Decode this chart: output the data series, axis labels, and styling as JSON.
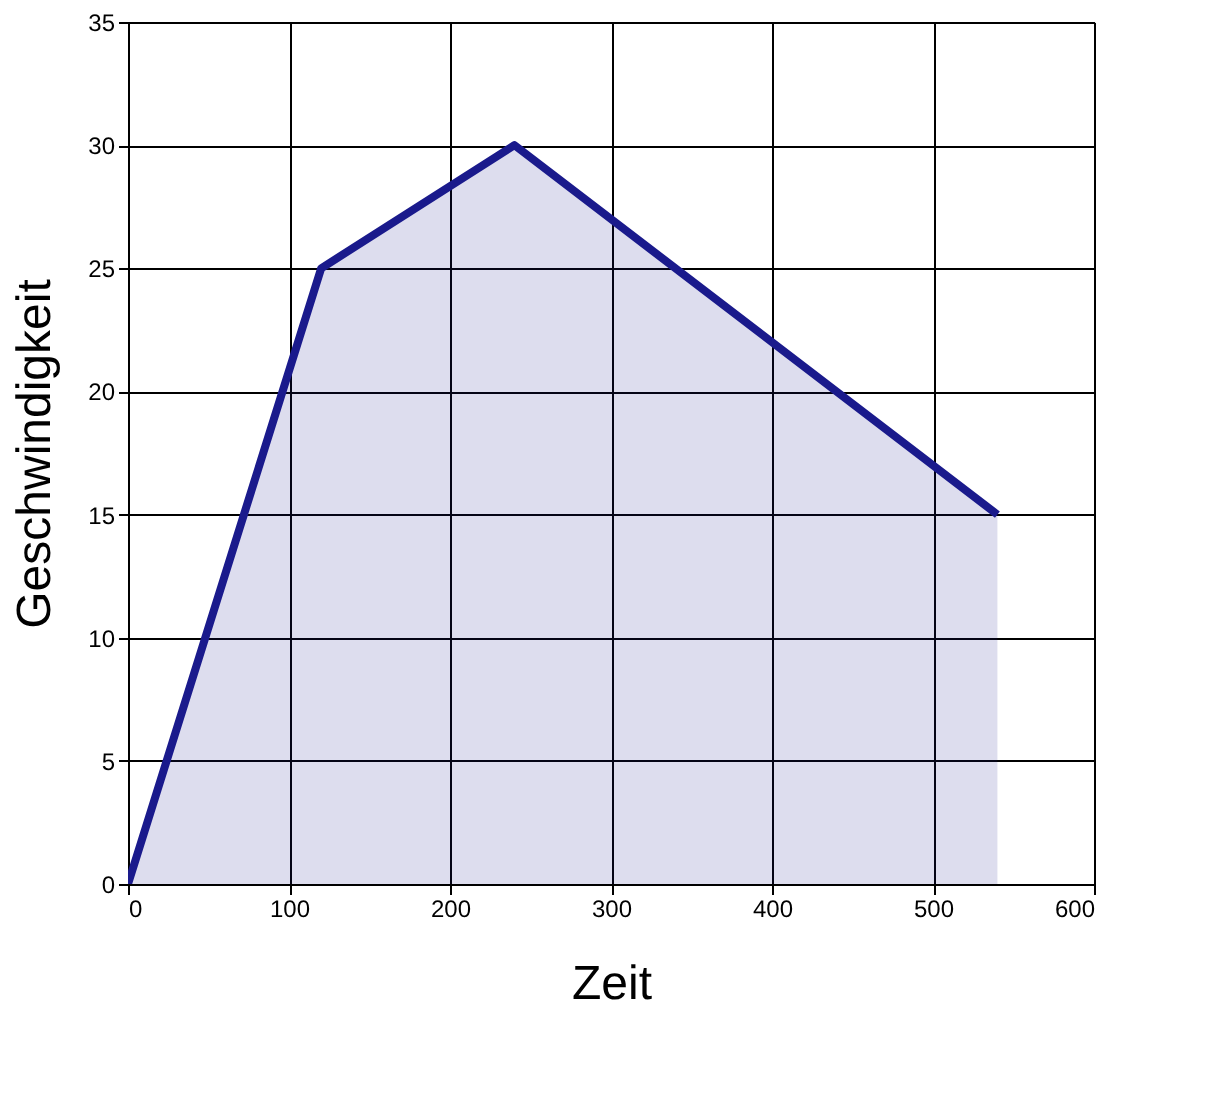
{
  "chart_data": {
    "type": "area",
    "xlabel": "Zeit",
    "ylabel": "Geschwindigkeit",
    "x": [
      0,
      120,
      240,
      540
    ],
    "series": [
      {
        "color": "#1a1a8c",
        "values": [
          0,
          25,
          30,
          15
        ]
      }
    ],
    "xlim": [
      0,
      600
    ],
    "xticks": [
      0,
      100,
      200,
      300,
      400,
      500,
      600
    ],
    "ylim": [
      0,
      35
    ],
    "yticks": [
      0,
      5,
      10,
      15,
      20,
      25,
      30,
      35
    ],
    "grid": true
  }
}
